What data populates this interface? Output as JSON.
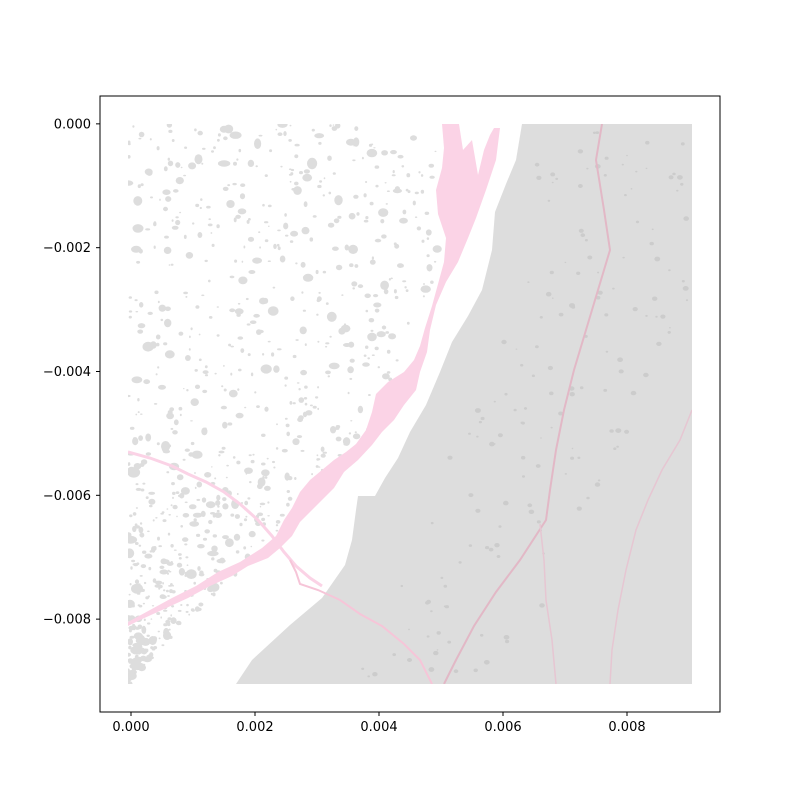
{
  "chart_data": {
    "type": "map",
    "title": "",
    "xlabel": "",
    "ylabel": "",
    "xlim": [
      -0.0005,
      0.0095
    ],
    "ylim": [
      -0.0095,
      0.00045
    ],
    "x_ticks": [
      {
        "value": 0.0,
        "label": "0.000"
      },
      {
        "value": 0.002,
        "label": "0.002"
      },
      {
        "value": 0.004,
        "label": "0.004"
      },
      {
        "value": 0.006,
        "label": "0.006"
      },
      {
        "value": 0.008,
        "label": "0.008"
      }
    ],
    "y_ticks": [
      {
        "value": 0.0,
        "label": "0.000"
      },
      {
        "value": -0.002,
        "label": "−0.002"
      },
      {
        "value": -0.004,
        "label": "−0.004"
      },
      {
        "value": -0.006,
        "label": "−0.006"
      },
      {
        "value": -0.008,
        "label": "−0.008"
      }
    ],
    "extent": {
      "x": [
        0.0,
        0.00915
      ],
      "y": [
        -0.00905,
        0.0
      ]
    },
    "layers": [
      {
        "name": "land",
        "color": "#dddddd"
      },
      {
        "name": "ponds",
        "color": "#dddddd"
      },
      {
        "name": "water",
        "color": "#fbd3e6"
      },
      {
        "name": "roads",
        "color": "#e5bfcc"
      }
    ],
    "grid": false,
    "legend": "none"
  }
}
